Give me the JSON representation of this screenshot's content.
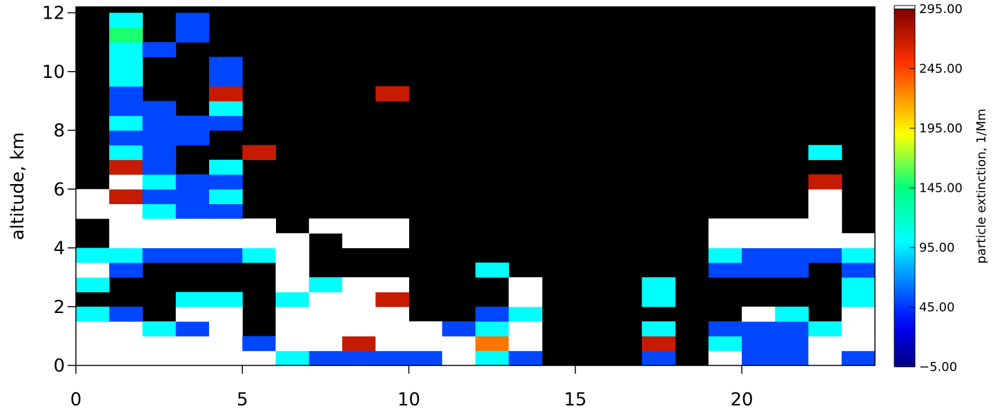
{
  "chart_data": {
    "type": "heatmap",
    "y_label": "altitude,  km",
    "colorbar_label": "particle extinction, 1/Mm",
    "xlim": [
      0,
      24
    ],
    "ylim": [
      0,
      12.2
    ],
    "xticks": [
      0,
      5,
      10,
      15,
      20
    ],
    "yticks": [
      0,
      2,
      4,
      6,
      8,
      10,
      12
    ],
    "clim": [
      -5,
      295
    ],
    "cticks": [
      {
        "value": -5,
        "label": "−5.00"
      },
      {
        "value": 45,
        "label": "45.00"
      },
      {
        "value": 95,
        "label": "95.00"
      },
      {
        "value": 145,
        "label": "145.00"
      },
      {
        "value": 195,
        "label": "195.00"
      },
      {
        "value": 245,
        "label": "245.00"
      },
      {
        "value": 295,
        "label": "295.00"
      }
    ],
    "background": "#000000",
    "over_color": "#ffffff",
    "x_edges": [
      0,
      1,
      2,
      3,
      4,
      5,
      6,
      7,
      8,
      9,
      10,
      11,
      12,
      13,
      14,
      15,
      16,
      17,
      18,
      19,
      20,
      21,
      22,
      23,
      24
    ],
    "y_edges": [
      0,
      0.5,
      1,
      1.5,
      2,
      2.5,
      3,
      3.5,
      4,
      4.5,
      5,
      5.5,
      6,
      6.5,
      7,
      7.5,
      8,
      8.5,
      9,
      9.5,
      10,
      10.5,
      11,
      11.5,
      12
    ],
    "z": [
      [
        350,
        350,
        350,
        350,
        350,
        350,
        100,
        50,
        50,
        50,
        50,
        350,
        100,
        50,
        null,
        null,
        null,
        50,
        null,
        350,
        50,
        50,
        350,
        50
      ],
      [
        350,
        350,
        350,
        350,
        350,
        50,
        350,
        350,
        270,
        350,
        350,
        350,
        230,
        350,
        null,
        null,
        null,
        270,
        null,
        100,
        50,
        50,
        350,
        350
      ],
      [
        350,
        350,
        100,
        50,
        350,
        null,
        350,
        350,
        350,
        350,
        350,
        50,
        100,
        350,
        null,
        null,
        null,
        100,
        null,
        50,
        50,
        50,
        100,
        350
      ],
      [
        100,
        50,
        null,
        350,
        350,
        null,
        350,
        350,
        350,
        350,
        null,
        null,
        50,
        100,
        null,
        null,
        null,
        null,
        null,
        null,
        350,
        100,
        null,
        350
      ],
      [
        null,
        null,
        null,
        100,
        100,
        null,
        100,
        350,
        350,
        270,
        null,
        null,
        null,
        350,
        null,
        null,
        null,
        100,
        null,
        null,
        null,
        null,
        null,
        100
      ],
      [
        100,
        null,
        null,
        null,
        null,
        null,
        350,
        100,
        350,
        350,
        null,
        null,
        null,
        350,
        null,
        null,
        null,
        100,
        null,
        null,
        null,
        null,
        null,
        100
      ],
      [
        350,
        50,
        null,
        null,
        null,
        null,
        350,
        null,
        null,
        null,
        null,
        null,
        100,
        null,
        null,
        null,
        null,
        null,
        null,
        50,
        50,
        50,
        null,
        50
      ],
      [
        100,
        100,
        50,
        50,
        50,
        100,
        350,
        null,
        null,
        null,
        null,
        null,
        null,
        null,
        null,
        null,
        null,
        null,
        null,
        100,
        50,
        50,
        50,
        100
      ],
      [
        null,
        350,
        350,
        350,
        350,
        350,
        350,
        null,
        350,
        350,
        null,
        null,
        null,
        null,
        null,
        null,
        null,
        null,
        null,
        350,
        350,
        350,
        350,
        350
      ],
      [
        null,
        350,
        350,
        350,
        350,
        350,
        null,
        350,
        350,
        350,
        null,
        null,
        null,
        null,
        null,
        null,
        null,
        null,
        null,
        350,
        350,
        350,
        350,
        null
      ],
      [
        350,
        350,
        100,
        50,
        50,
        null,
        null,
        null,
        null,
        null,
        null,
        null,
        null,
        null,
        null,
        null,
        null,
        null,
        null,
        null,
        null,
        null,
        350,
        null
      ],
      [
        350,
        270,
        50,
        50,
        100,
        null,
        null,
        null,
        null,
        null,
        null,
        null,
        null,
        null,
        null,
        null,
        null,
        null,
        null,
        null,
        null,
        null,
        350,
        null
      ],
      [
        null,
        350,
        100,
        50,
        50,
        null,
        null,
        null,
        null,
        null,
        null,
        null,
        null,
        null,
        null,
        null,
        null,
        null,
        null,
        null,
        null,
        null,
        270,
        null
      ],
      [
        null,
        270,
        50,
        null,
        100,
        null,
        null,
        null,
        null,
        null,
        null,
        null,
        null,
        null,
        null,
        null,
        null,
        null,
        null,
        null,
        null,
        null,
        null,
        null
      ],
      [
        null,
        100,
        50,
        null,
        null,
        270,
        null,
        null,
        null,
        null,
        null,
        null,
        null,
        null,
        null,
        null,
        null,
        null,
        null,
        null,
        null,
        null,
        100,
        null
      ],
      [
        null,
        50,
        50,
        50,
        null,
        null,
        null,
        null,
        null,
        null,
        null,
        null,
        null,
        null,
        null,
        null,
        null,
        null,
        null,
        null,
        null,
        null,
        null,
        null
      ],
      [
        null,
        100,
        50,
        50,
        50,
        null,
        null,
        null,
        null,
        null,
        null,
        null,
        null,
        null,
        null,
        null,
        null,
        null,
        null,
        null,
        null,
        null,
        null,
        null
      ],
      [
        null,
        50,
        50,
        null,
        100,
        null,
        null,
        null,
        null,
        null,
        null,
        null,
        null,
        null,
        null,
        null,
        null,
        null,
        null,
        null,
        null,
        null,
        null,
        null
      ],
      [
        null,
        50,
        null,
        null,
        270,
        null,
        null,
        null,
        null,
        270,
        null,
        null,
        null,
        null,
        null,
        null,
        null,
        null,
        null,
        null,
        null,
        null,
        null,
        null
      ],
      [
        null,
        100,
        null,
        null,
        50,
        null,
        null,
        null,
        null,
        null,
        null,
        null,
        null,
        null,
        null,
        null,
        null,
        null,
        null,
        null,
        null,
        null,
        null,
        null
      ],
      [
        null,
        100,
        null,
        null,
        50,
        null,
        null,
        null,
        null,
        null,
        null,
        null,
        null,
        null,
        null,
        null,
        null,
        null,
        null,
        null,
        null,
        null,
        null,
        null
      ],
      [
        null,
        100,
        50,
        null,
        null,
        null,
        null,
        null,
        null,
        null,
        null,
        null,
        null,
        null,
        null,
        null,
        null,
        null,
        null,
        null,
        null,
        null,
        null,
        null
      ],
      [
        null,
        150,
        null,
        50,
        null,
        null,
        null,
        null,
        null,
        null,
        null,
        null,
        null,
        null,
        null,
        null,
        null,
        null,
        null,
        null,
        null,
        null,
        null,
        null
      ],
      [
        null,
        100,
        null,
        50,
        null,
        null,
        null,
        null,
        null,
        null,
        null,
        null,
        null,
        null,
        null,
        null,
        null,
        null,
        null,
        null,
        null,
        null,
        null,
        null
      ]
    ]
  }
}
